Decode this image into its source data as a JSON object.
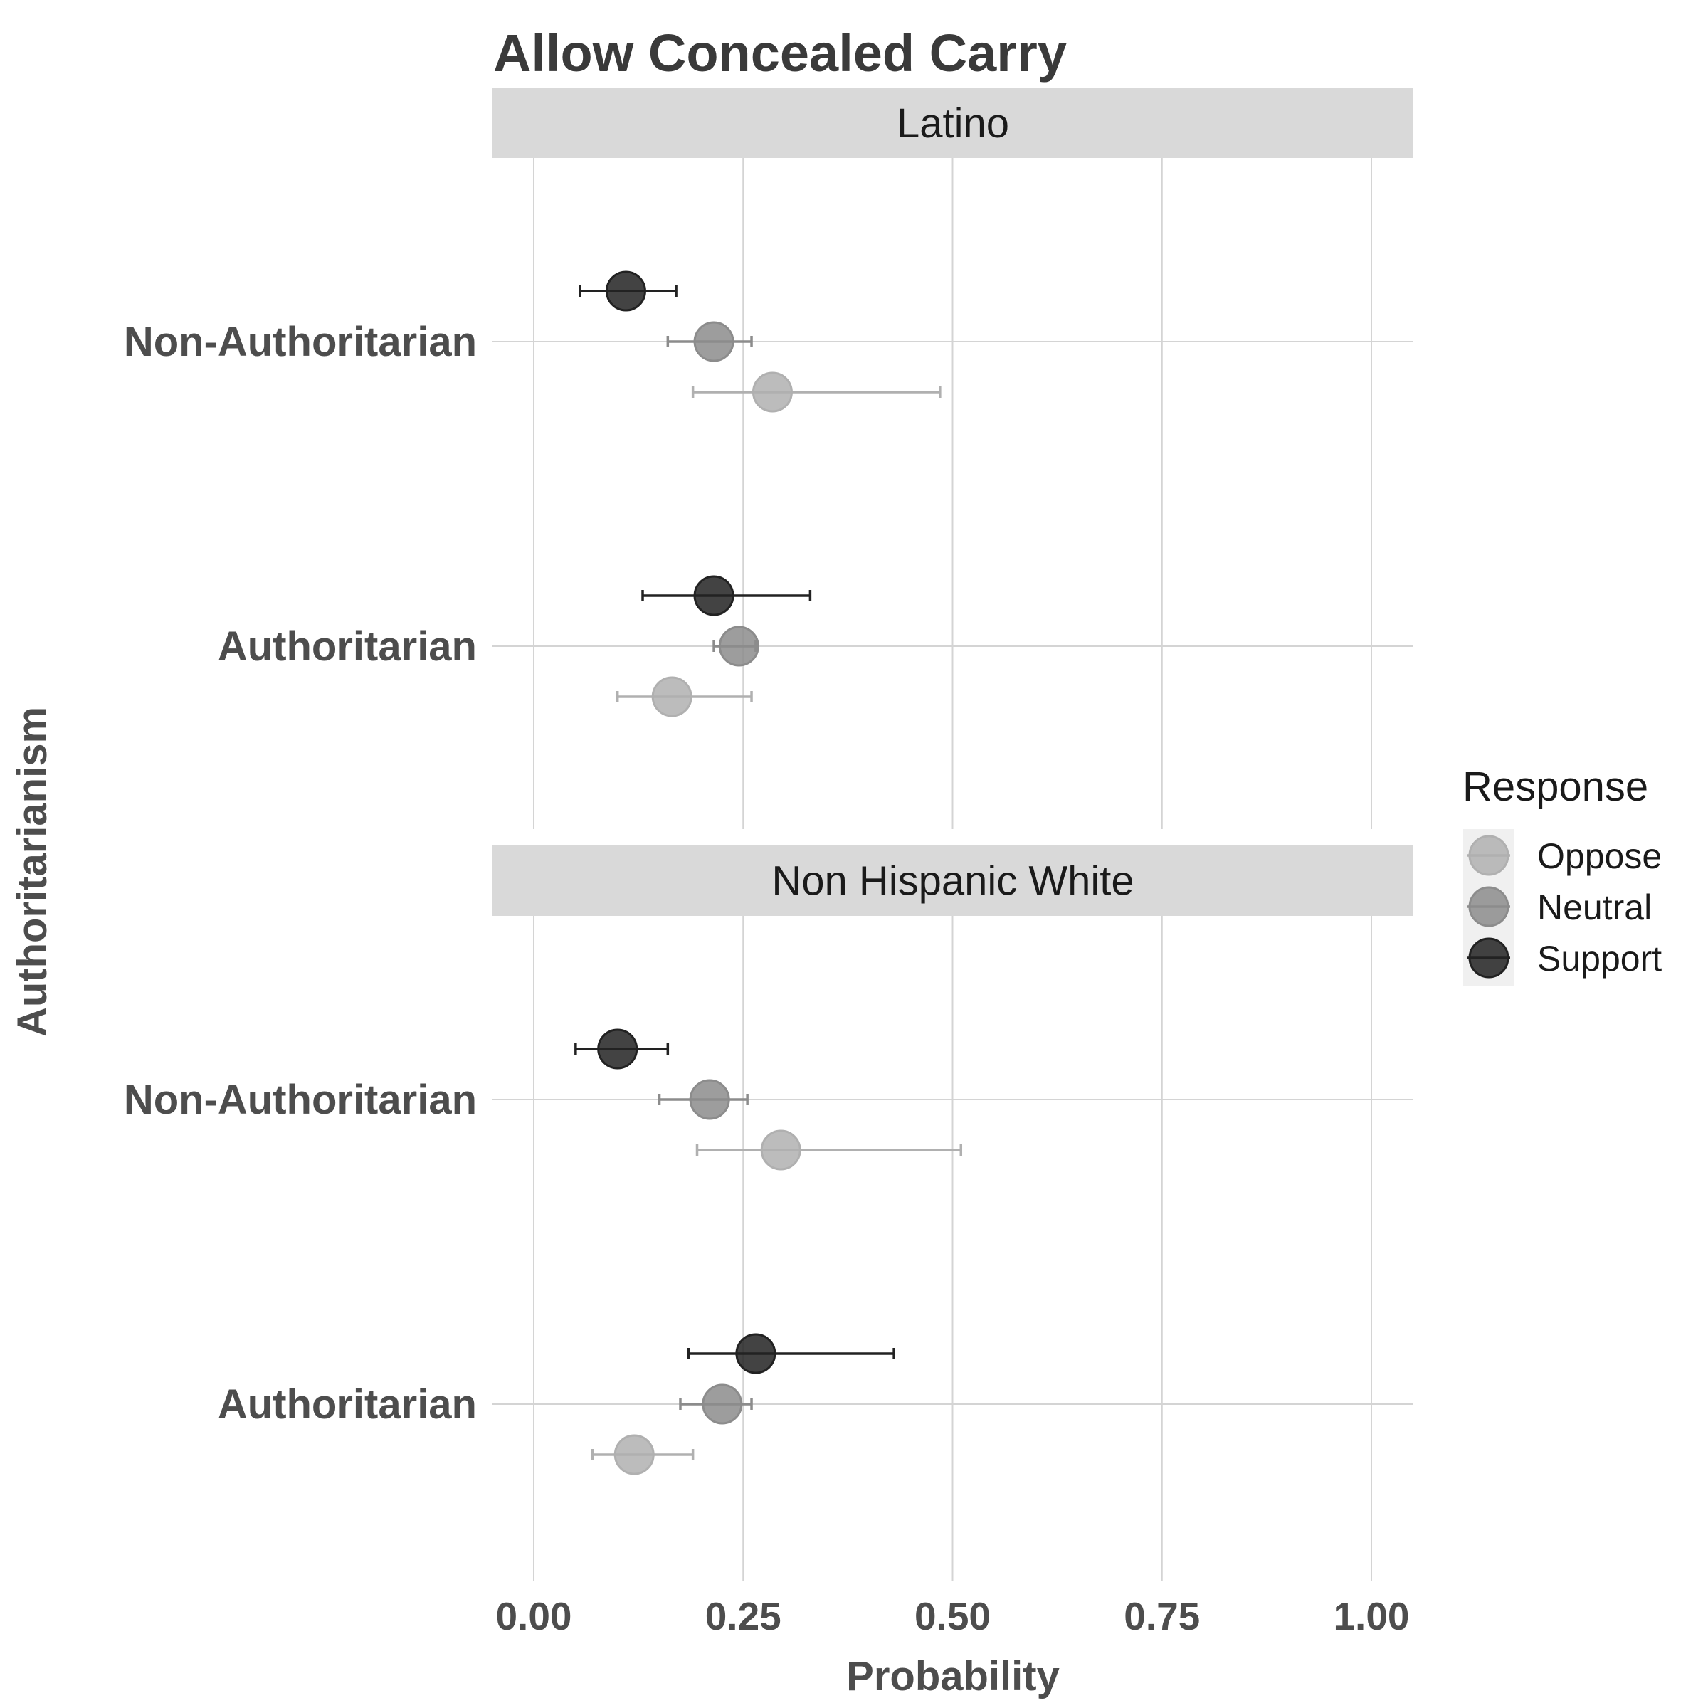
{
  "chart_data": {
    "type": "scatter",
    "title": "Allow Concealed Carry",
    "xlabel": "Probability",
    "ylabel": "Authoritarianism",
    "xlim": [
      -0.05,
      1.05
    ],
    "x_ticks": [
      "0.00",
      "0.25",
      "0.50",
      "0.75",
      "1.00"
    ],
    "x_tick_values": [
      0,
      0.25,
      0.5,
      0.75,
      1.0
    ],
    "categories": [
      "Non-Authoritarian",
      "Authoritarian"
    ],
    "grid": true,
    "legend": {
      "title": "Response",
      "position": "right",
      "entries": [
        "Oppose",
        "Neutral",
        "Support"
      ]
    },
    "colors": {
      "Oppose": "#b0b0b0",
      "Neutral": "#8c8c8c",
      "Support": "#222222",
      "strip": "#d9d9d9",
      "grid": "#d4d4d4"
    },
    "panels": [
      {
        "strip": "Latino",
        "series": [
          {
            "name": "Support",
            "points": [
              {
                "category": "Non-Authoritarian",
                "x": 0.11,
                "lo": 0.055,
                "hi": 0.17
              },
              {
                "category": "Authoritarian",
                "x": 0.215,
                "lo": 0.13,
                "hi": 0.33
              }
            ]
          },
          {
            "name": "Neutral",
            "points": [
              {
                "category": "Non-Authoritarian",
                "x": 0.215,
                "lo": 0.16,
                "hi": 0.26
              },
              {
                "category": "Authoritarian",
                "x": 0.245,
                "lo": 0.215,
                "hi": 0.265
              }
            ]
          },
          {
            "name": "Oppose",
            "points": [
              {
                "category": "Non-Authoritarian",
                "x": 0.285,
                "lo": 0.19,
                "hi": 0.485
              },
              {
                "category": "Authoritarian",
                "x": 0.165,
                "lo": 0.1,
                "hi": 0.26
              }
            ]
          }
        ]
      },
      {
        "strip": "Non Hispanic White",
        "series": [
          {
            "name": "Support",
            "points": [
              {
                "category": "Non-Authoritarian",
                "x": 0.1,
                "lo": 0.05,
                "hi": 0.16
              },
              {
                "category": "Authoritarian",
                "x": 0.265,
                "lo": 0.185,
                "hi": 0.43
              }
            ]
          },
          {
            "name": "Neutral",
            "points": [
              {
                "category": "Non-Authoritarian",
                "x": 0.21,
                "lo": 0.15,
                "hi": 0.255
              },
              {
                "category": "Authoritarian",
                "x": 0.225,
                "lo": 0.175,
                "hi": 0.26
              }
            ]
          },
          {
            "name": "Oppose",
            "points": [
              {
                "category": "Non-Authoritarian",
                "x": 0.295,
                "lo": 0.195,
                "hi": 0.51
              },
              {
                "category": "Authoritarian",
                "x": 0.12,
                "lo": 0.07,
                "hi": 0.19
              }
            ]
          }
        ]
      }
    ]
  }
}
